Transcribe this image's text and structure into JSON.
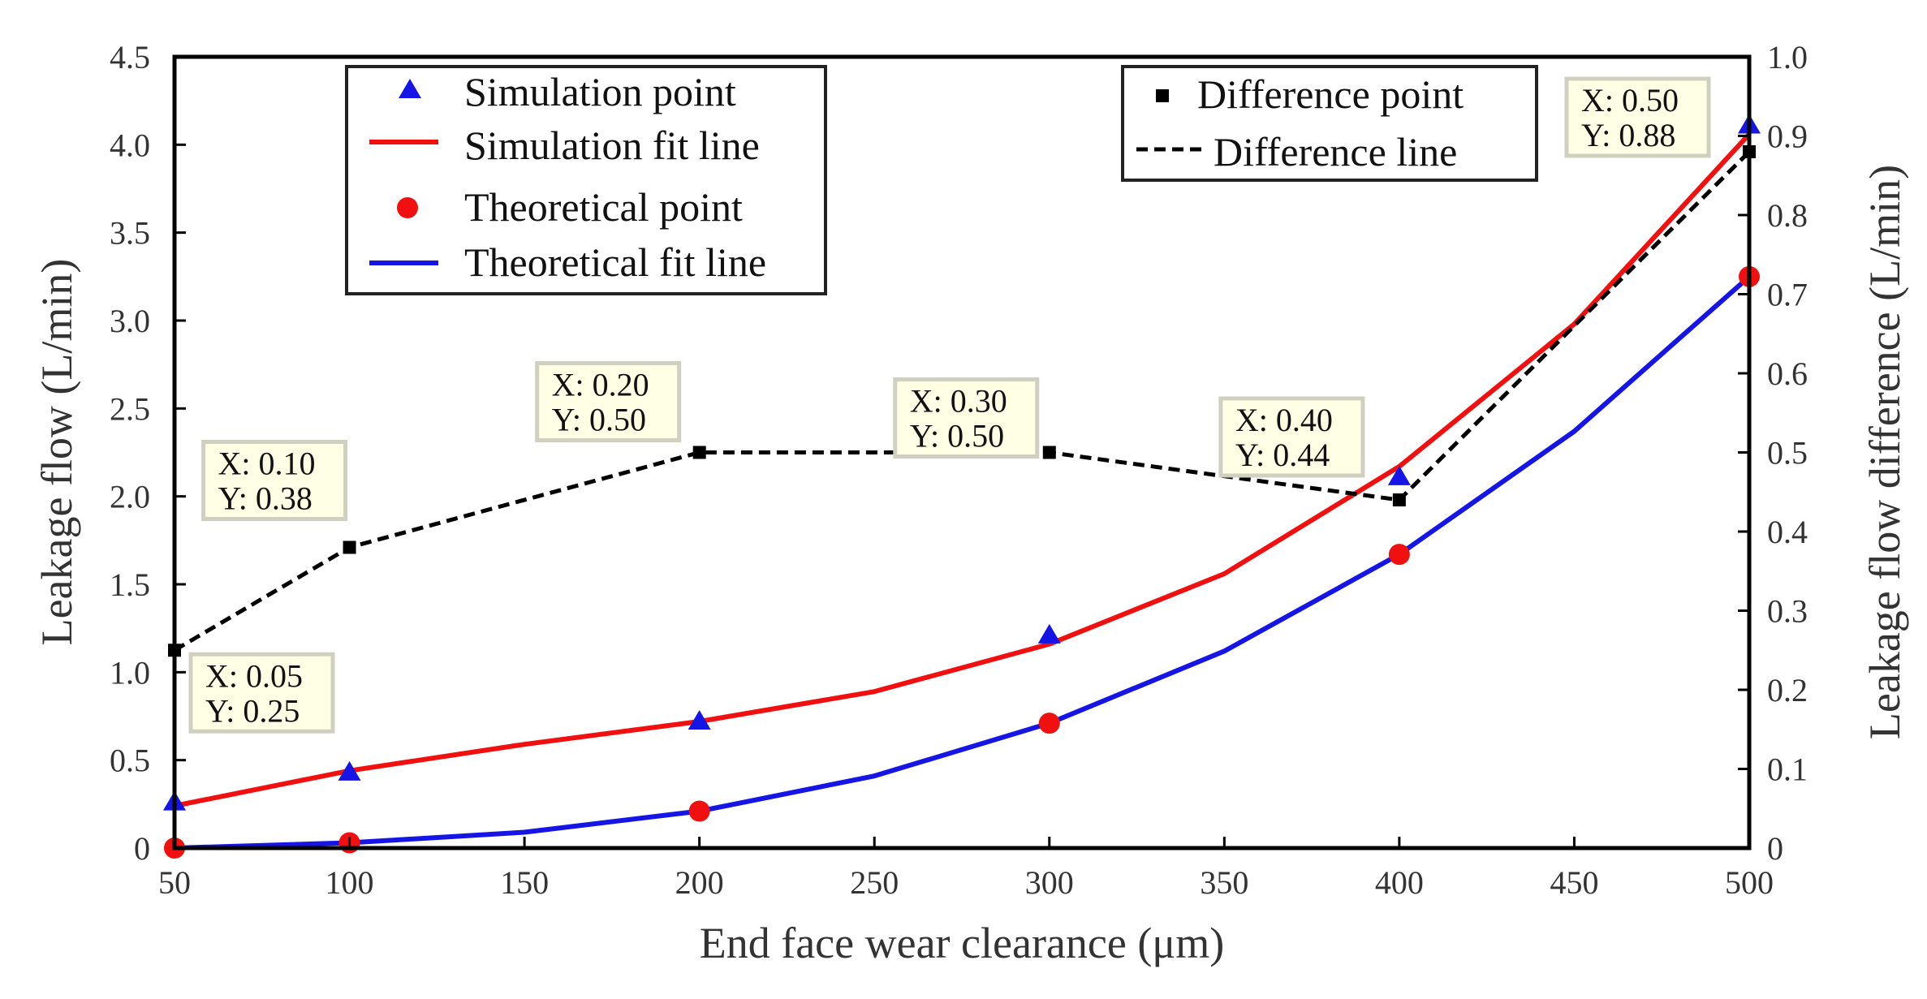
{
  "chart_data": {
    "type": "line",
    "xlabel": "End face wear clearance (μm)",
    "ylabel": "Leakage flow (L/min)",
    "y2label": "Leakage flow difference (L/min)",
    "xlim": [
      50,
      500
    ],
    "ylim": [
      0,
      4.5
    ],
    "y2lim": [
      0,
      1.0
    ],
    "x_ticks": [
      "50",
      "100",
      "150",
      "200",
      "250",
      "300",
      "350",
      "400",
      "450",
      "500"
    ],
    "y_ticks": [
      "0",
      "0.5",
      "1.0",
      "1.5",
      "2.0",
      "2.5",
      "3.0",
      "3.5",
      "4.0",
      "4.5"
    ],
    "y2_ticks": [
      "0",
      "0.1",
      "0.2",
      "0.3",
      "0.4",
      "0.5",
      "0.6",
      "0.7",
      "0.8",
      "0.9",
      "1.0"
    ],
    "colors": {
      "simulation": "#1515e6",
      "simulation_fit": "#f01010",
      "theoretical": "#f01010",
      "theoretical_fit": "#1515e6",
      "difference": "#000000",
      "datatip_bg": "#ffffe6"
    },
    "legend_left": {
      "placement": "top-left",
      "entries": [
        "Simulation point",
        "Simulation fit line",
        "Theoretical point",
        "Theoretical fit line"
      ]
    },
    "legend_right": {
      "placement": "top-right",
      "entries": [
        "Difference point",
        "Difference line"
      ]
    },
    "series": [
      {
        "name": "Simulation point",
        "axis": "left",
        "marker": "triangle",
        "x": [
          50,
          100,
          200,
          300,
          400,
          500
        ],
        "y": [
          0.26,
          0.43,
          0.72,
          1.21,
          2.11,
          4.11
        ]
      },
      {
        "name": "Simulation fit line",
        "axis": "left",
        "style": "solid",
        "x": [
          50,
          100,
          150,
          200,
          250,
          300,
          350,
          400,
          450,
          500
        ],
        "y": [
          0.24,
          0.44,
          0.59,
          0.72,
          0.89,
          1.16,
          1.56,
          2.17,
          2.98,
          4.06
        ]
      },
      {
        "name": "Theoretical point",
        "axis": "left",
        "marker": "circle",
        "x": [
          50,
          100,
          200,
          300,
          400,
          500
        ],
        "y": [
          0.0,
          0.03,
          0.21,
          0.71,
          1.67,
          3.25
        ]
      },
      {
        "name": "Theoretical fit line",
        "axis": "left",
        "style": "solid",
        "x": [
          50,
          100,
          150,
          200,
          250,
          300,
          350,
          400,
          450,
          500
        ],
        "y": [
          0.0,
          0.03,
          0.09,
          0.21,
          0.41,
          0.71,
          1.12,
          1.67,
          2.37,
          3.25
        ]
      },
      {
        "name": "Difference point",
        "axis": "right",
        "marker": "square",
        "x": [
          50,
          100,
          200,
          300,
          400,
          500
        ],
        "y": [
          0.25,
          0.38,
          0.5,
          0.5,
          0.44,
          0.88
        ]
      },
      {
        "name": "Difference line",
        "axis": "right",
        "style": "dashed",
        "x": [
          50,
          100,
          200,
          300,
          400,
          500
        ],
        "y": [
          0.25,
          0.38,
          0.5,
          0.5,
          0.44,
          0.88
        ]
      }
    ],
    "annotations": [
      {
        "x_text": "X: 0.05",
        "y_text": "Y: 0.25",
        "at": [
          50,
          0.25
        ]
      },
      {
        "x_text": "X: 0.10",
        "y_text": "Y: 0.38",
        "at": [
          100,
          0.38
        ]
      },
      {
        "x_text": "X: 0.20",
        "y_text": "Y: 0.50",
        "at": [
          200,
          0.5
        ]
      },
      {
        "x_text": "X: 0.30",
        "y_text": "Y: 0.50",
        "at": [
          300,
          0.5
        ]
      },
      {
        "x_text": "X: 0.40",
        "y_text": "Y: 0.44",
        "at": [
          400,
          0.44
        ]
      },
      {
        "x_text": "X: 0.50",
        "y_text": "Y: 0.88",
        "at": [
          500,
          0.88
        ]
      }
    ]
  }
}
